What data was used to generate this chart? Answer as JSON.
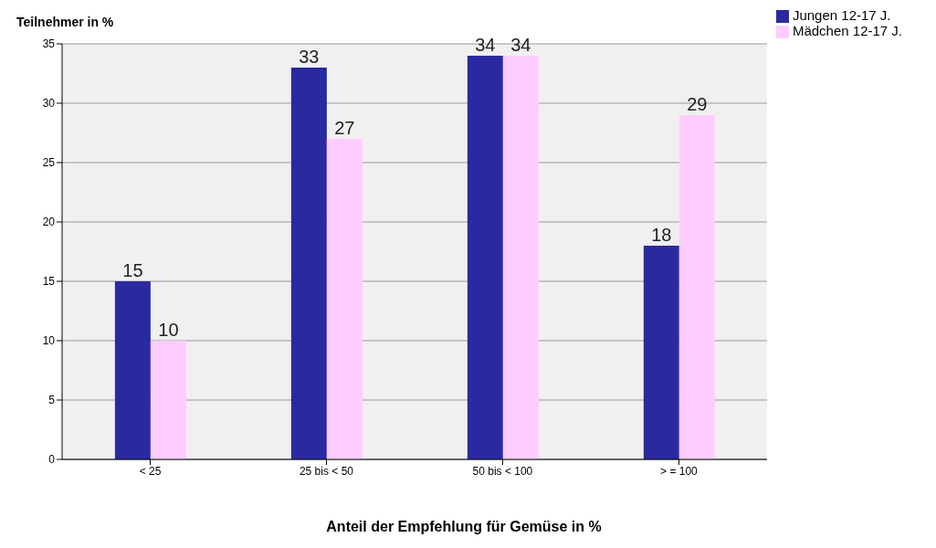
{
  "chart_data": {
    "type": "bar",
    "ylabel": "Teilnehmer in %",
    "xlabel": "Anteil der Empfehlung für Gemüse in %",
    "categories": [
      "< 25",
      "25 bis < 50",
      "50 bis < 100",
      "> = 100"
    ],
    "series": [
      {
        "name": "Jungen 12-17  J.",
        "color": "#2a2aa0",
        "values": [
          15,
          33,
          34,
          18
        ]
      },
      {
        "name": "Mädchen 12-17 J.",
        "color": "#ffccff",
        "values": [
          10,
          27,
          34,
          29
        ]
      }
    ],
    "ylim": [
      0,
      35
    ],
    "yticks": [
      0,
      5,
      10,
      15,
      20,
      25,
      30,
      35
    ],
    "grid": "y",
    "legend": "top right",
    "data_labels": true
  }
}
